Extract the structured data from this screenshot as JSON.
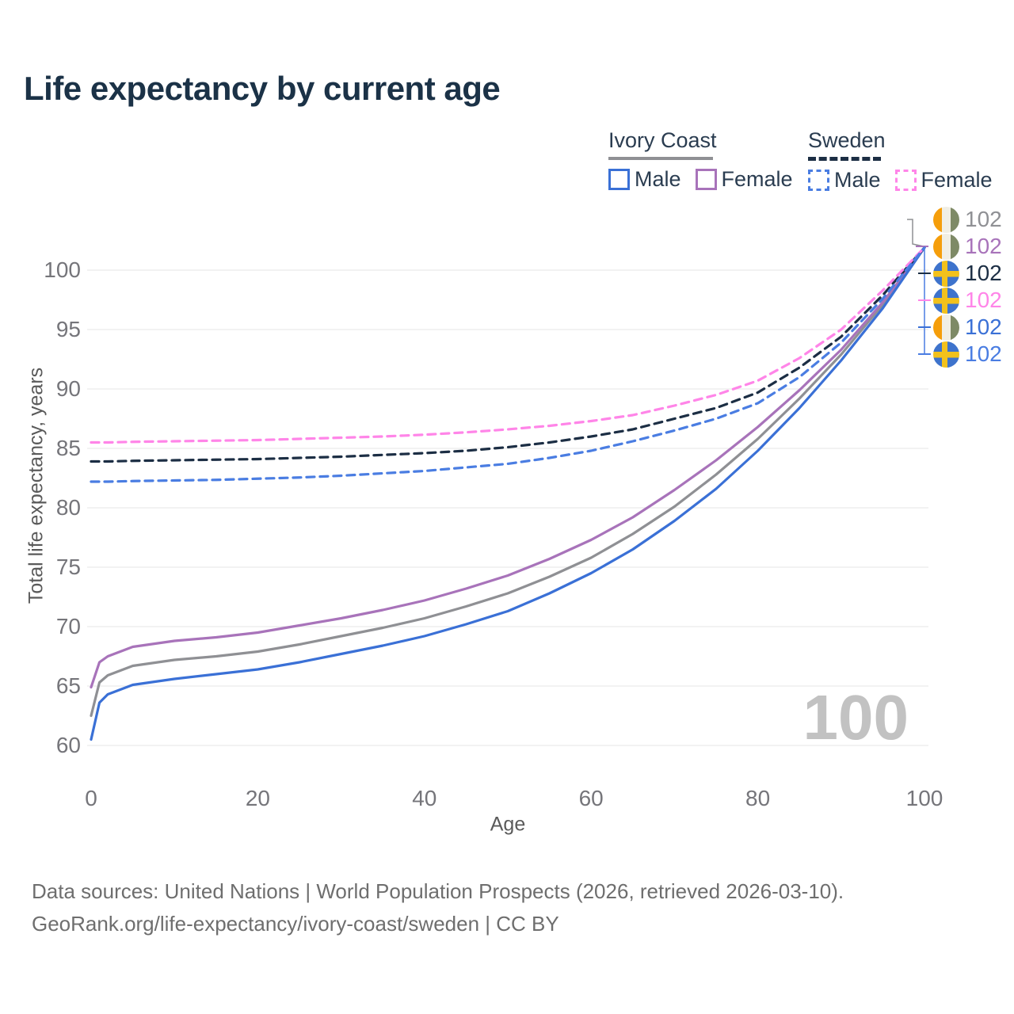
{
  "watermark": "100",
  "legend": {
    "groups": [
      {
        "title": "Ivory Coast",
        "series_style": "solid",
        "underline_series": "ic_total",
        "items": [
          {
            "label": "Male",
            "series": "ic_male"
          },
          {
            "label": "Female",
            "series": "ic_female"
          }
        ]
      },
      {
        "title": "Sweden",
        "series_style": "dashed",
        "underline_series": "se_total",
        "items": [
          {
            "label": "Male",
            "series": "se_male"
          },
          {
            "label": "Female",
            "series": "se_female"
          }
        ]
      }
    ]
  },
  "footer": {
    "line1": "Data sources: United Nations | World Population Prospects (2026, retrieved 2026-03-10).",
    "line2": "GeoRank.org/life-expectancy/ivory-coast/sweden | CC BY"
  },
  "chart_data": {
    "type": "line",
    "title": "Life expectancy by current age",
    "xlabel": "Age",
    "ylabel": "Total life expectancy, years",
    "x_ticks": [
      0,
      20,
      40,
      60,
      80,
      100
    ],
    "y_ticks": [
      60,
      65,
      70,
      75,
      80,
      85,
      90,
      95,
      100
    ],
    "xlim": [
      0,
      100
    ],
    "ylim": [
      58.5,
      103
    ],
    "grid": "horizontal",
    "legend_position": "top-right",
    "ages": [
      0,
      1,
      2,
      5,
      10,
      15,
      20,
      25,
      30,
      35,
      40,
      45,
      50,
      55,
      60,
      65,
      70,
      75,
      80,
      85,
      90,
      95,
      100
    ],
    "series": [
      {
        "id": "ic_total",
        "country": "Ivory Coast",
        "sex": "Both",
        "flag": "ci",
        "color": "#8f9094",
        "dashed": false,
        "end_label": "102",
        "values": [
          62.5,
          65.3,
          65.9,
          66.7,
          67.2,
          67.5,
          67.9,
          68.5,
          69.2,
          69.9,
          70.7,
          71.7,
          72.8,
          74.2,
          75.8,
          77.8,
          80.1,
          82.8,
          85.8,
          89.2,
          92.9,
          97.1,
          101.9
        ]
      },
      {
        "id": "ic_female",
        "country": "Ivory Coast",
        "sex": "Female",
        "flag": "ci",
        "color": "#a873ba",
        "dashed": false,
        "end_label": "102",
        "values": [
          64.9,
          67.0,
          67.5,
          68.3,
          68.8,
          69.1,
          69.5,
          70.1,
          70.7,
          71.4,
          72.2,
          73.2,
          74.3,
          75.7,
          77.3,
          79.2,
          81.5,
          84.0,
          86.8,
          89.9,
          93.3,
          97.3,
          101.9
        ]
      },
      {
        "id": "se_total",
        "country": "Sweden",
        "sex": "Both",
        "flag": "se",
        "color": "#1c2e44",
        "dashed": true,
        "end_label": "102",
        "values": [
          83.9,
          83.9,
          83.9,
          83.95,
          84.0,
          84.05,
          84.1,
          84.2,
          84.3,
          84.45,
          84.6,
          84.8,
          85.1,
          85.5,
          86.0,
          86.6,
          87.5,
          88.4,
          89.7,
          91.8,
          94.4,
          97.9,
          101.9
        ]
      },
      {
        "id": "se_female",
        "country": "Sweden",
        "sex": "Female",
        "flag": "se",
        "color": "#ff85e8",
        "dashed": true,
        "end_label": "102",
        "values": [
          85.5,
          85.5,
          85.5,
          85.55,
          85.6,
          85.65,
          85.7,
          85.8,
          85.9,
          86.0,
          86.15,
          86.35,
          86.6,
          86.9,
          87.3,
          87.8,
          88.6,
          89.5,
          90.7,
          92.6,
          95.0,
          98.3,
          101.9
        ]
      },
      {
        "id": "ic_male",
        "country": "Ivory Coast",
        "sex": "Male",
        "flag": "ci",
        "color": "#3a70d6",
        "dashed": false,
        "end_label": "102",
        "values": [
          60.5,
          63.6,
          64.3,
          65.1,
          65.6,
          66.0,
          66.4,
          67.0,
          67.7,
          68.4,
          69.2,
          70.2,
          71.3,
          72.8,
          74.5,
          76.5,
          78.9,
          81.6,
          84.8,
          88.4,
          92.4,
          96.8,
          101.9
        ]
      },
      {
        "id": "se_male",
        "country": "Sweden",
        "sex": "Male",
        "flag": "se",
        "color": "#4a7de2",
        "dashed": true,
        "end_label": "102",
        "values": [
          82.2,
          82.2,
          82.2,
          82.25,
          82.3,
          82.35,
          82.45,
          82.55,
          82.7,
          82.9,
          83.1,
          83.4,
          83.7,
          84.2,
          84.8,
          85.6,
          86.5,
          87.5,
          88.8,
          91.0,
          93.9,
          97.6,
          101.9
        ]
      }
    ]
  },
  "colors": {
    "title_text": "#1b3247",
    "axis_text": "#75757a",
    "gridline": "#eaeaea",
    "watermark": "#c2c2c2",
    "footer_text": "#6e6e6e"
  }
}
